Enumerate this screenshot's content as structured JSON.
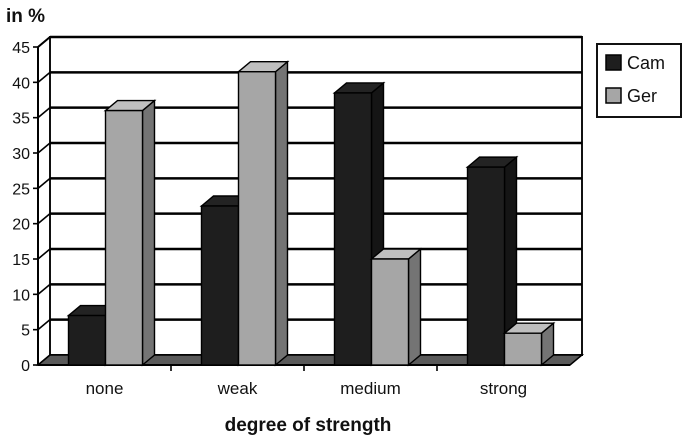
{
  "chart_data": {
    "type": "bar",
    "style": "3d-clustered-column",
    "unit_label": "in %",
    "xlabel": "degree of strength",
    "categories": [
      "none",
      "weak",
      "medium",
      "strong"
    ],
    "yticks": [
      "0",
      "5",
      "10",
      "15",
      "20",
      "25",
      "30",
      "35",
      "40",
      "45"
    ],
    "ylim": [
      0,
      45
    ],
    "grid": true,
    "legend_position": "top-right",
    "series": [
      {
        "name": "Cam",
        "color": "#1e1e1e",
        "values": [
          7,
          22.5,
          38.5,
          28
        ]
      },
      {
        "name": "Ger",
        "color": "#a6a6a6",
        "values": [
          36,
          41.5,
          15,
          4.5
        ]
      }
    ]
  }
}
